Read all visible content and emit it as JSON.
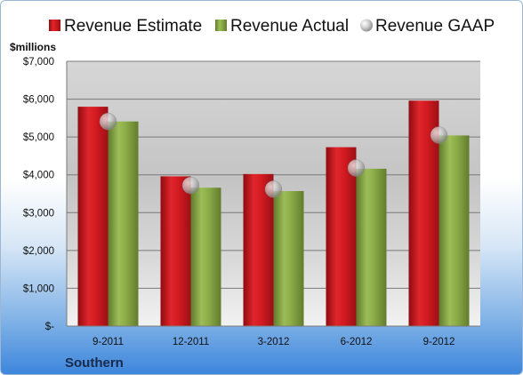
{
  "chart_data": {
    "type": "bar",
    "unit_label": "$millions",
    "company": "Southern",
    "categories": [
      "9-2011",
      "12-2011",
      "3-2012",
      "6-2012",
      "9-2012"
    ],
    "series": [
      {
        "name": "Revenue Estimate",
        "kind": "bar",
        "color": "#d8181f",
        "values": [
          5800,
          3960,
          4020,
          4730,
          5960
        ]
      },
      {
        "name": "Revenue Actual",
        "kind": "bar",
        "color": "#8fb04a",
        "values": [
          5410,
          3660,
          3570,
          4160,
          5040
        ]
      },
      {
        "name": "Revenue GAAP",
        "kind": "marker",
        "color": "#c9c9c9",
        "values": [
          5410,
          3720,
          3620,
          4180,
          5050
        ]
      }
    ],
    "ylim": [
      0,
      7000
    ],
    "yticks": [
      0,
      1000,
      2000,
      3000,
      4000,
      5000,
      6000,
      7000
    ],
    "ytick_labels": [
      "$-",
      "$1,000",
      "$2,000",
      "$3,000",
      "$4,000",
      "$5,000",
      "$6,000",
      "$7,000"
    ],
    "grid": true,
    "legend_position": "top"
  }
}
